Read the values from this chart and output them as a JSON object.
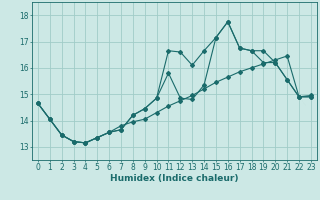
{
  "xlabel": "Humidex (Indice chaleur)",
  "background_color": "#cce8e5",
  "grid_color": "#a0ccc8",
  "line_color": "#1a6b6b",
  "xlim": [
    -0.5,
    23.5
  ],
  "ylim": [
    12.5,
    18.5
  ],
  "yticks": [
    13,
    14,
    15,
    16,
    17,
    18
  ],
  "xticks": [
    0,
    1,
    2,
    3,
    4,
    5,
    6,
    7,
    8,
    9,
    10,
    11,
    12,
    13,
    14,
    15,
    16,
    17,
    18,
    19,
    20,
    21,
    22,
    23
  ],
  "line1_x": [
    0,
    1,
    2,
    3,
    4,
    5,
    6,
    7,
    8,
    9,
    10,
    11,
    12,
    13,
    14,
    15,
    16,
    17,
    18,
    19,
    20,
    21,
    22,
    23
  ],
  "line1_y": [
    14.65,
    14.05,
    13.45,
    13.2,
    13.15,
    13.35,
    13.55,
    13.65,
    14.2,
    14.45,
    14.85,
    16.65,
    16.6,
    16.1,
    16.65,
    17.15,
    17.75,
    16.75,
    16.65,
    16.2,
    16.2,
    15.55,
    14.9,
    14.9
  ],
  "line2_x": [
    0,
    1,
    2,
    3,
    4,
    5,
    6,
    7,
    8,
    9,
    10,
    11,
    12,
    13,
    14,
    15,
    16,
    17,
    18,
    19,
    20,
    21,
    22,
    23
  ],
  "line2_y": [
    14.65,
    14.05,
    13.45,
    13.2,
    13.15,
    13.35,
    13.55,
    13.65,
    14.2,
    14.45,
    14.85,
    15.8,
    14.85,
    14.8,
    15.35,
    17.15,
    17.75,
    16.75,
    16.65,
    16.65,
    16.2,
    15.55,
    14.9,
    14.9
  ],
  "line3_x": [
    0,
    1,
    2,
    3,
    4,
    5,
    6,
    7,
    8,
    9,
    10,
    11,
    12,
    13,
    14,
    15,
    16,
    17,
    18,
    19,
    20,
    21,
    22,
    23
  ],
  "line3_y": [
    14.65,
    14.05,
    13.45,
    13.2,
    13.15,
    13.35,
    13.55,
    13.8,
    13.95,
    14.05,
    14.3,
    14.55,
    14.75,
    14.95,
    15.2,
    15.45,
    15.65,
    15.85,
    16.0,
    16.15,
    16.3,
    16.45,
    14.9,
    14.95
  ],
  "xlabel_fontsize": 6.5,
  "tick_fontsize": 5.5
}
